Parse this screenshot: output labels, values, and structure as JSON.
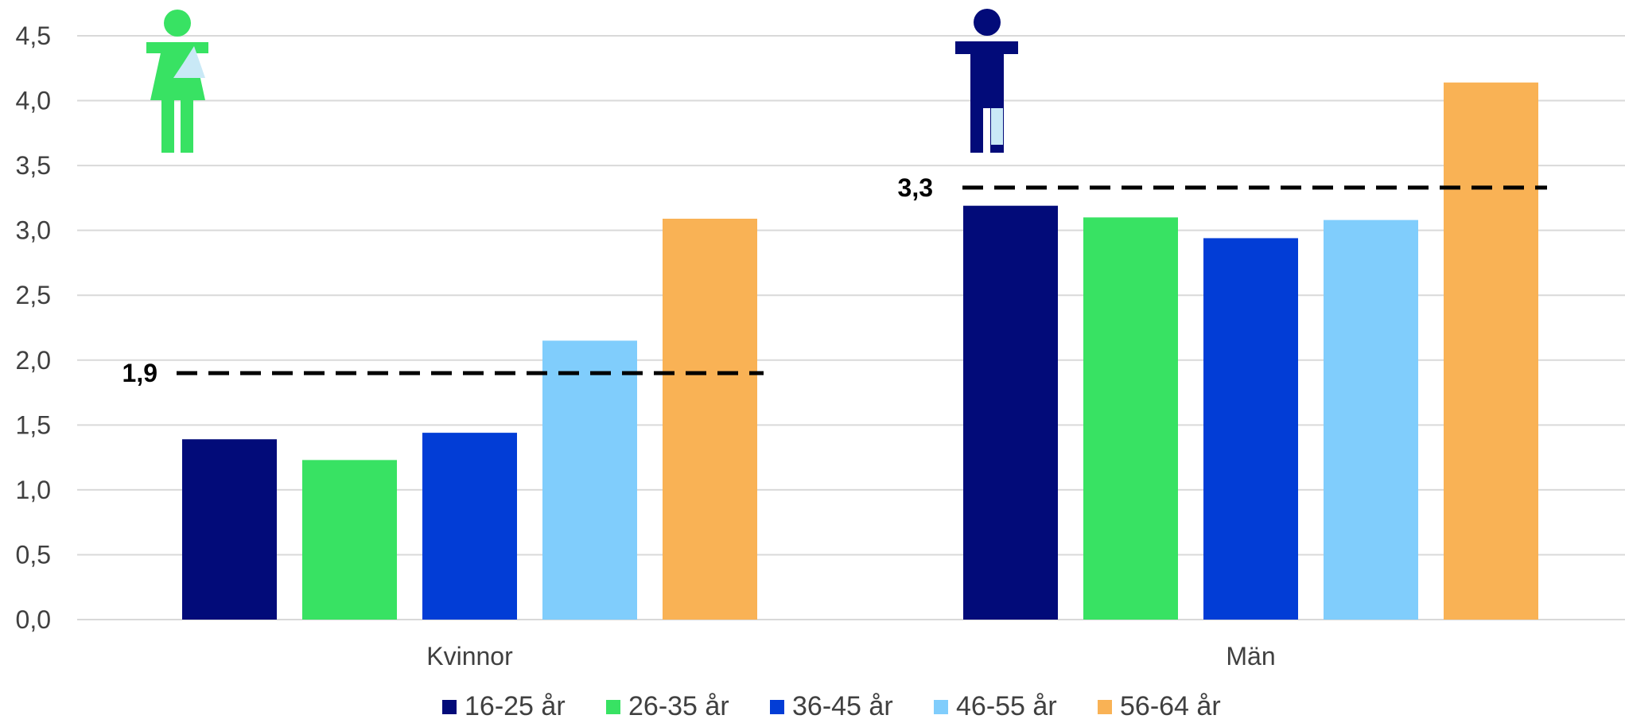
{
  "chart_data": {
    "type": "bar",
    "title": "",
    "xlabel": "",
    "ylabel": "",
    "ylim": [
      0,
      4.5
    ],
    "yticks": [
      "0,0",
      "0,5",
      "1,0",
      "1,5",
      "2,0",
      "2,5",
      "3,0",
      "3,5",
      "4,0",
      "4,5"
    ],
    "grid": true,
    "legend_position": "bottom",
    "categories": [
      "Kvinnor",
      "Män"
    ],
    "series": [
      {
        "name": "16-25 år",
        "color": "#020B79",
        "values": [
          1.39,
          3.19
        ]
      },
      {
        "name": "26-35 år",
        "color": "#38E263",
        "values": [
          1.23,
          3.1
        ]
      },
      {
        "name": "36-45 år",
        "color": "#023DD6",
        "values": [
          1.44,
          2.94
        ]
      },
      {
        "name": "46-55 år",
        "color": "#80CDFC",
        "values": [
          2.15,
          3.08
        ]
      },
      {
        "name": "56-64 år",
        "color": "#F9B255",
        "values": [
          3.09,
          4.14
        ]
      }
    ],
    "averages": [
      {
        "category": "Kvinnor",
        "value": 1.9,
        "label": "1,9"
      },
      {
        "category": "Män",
        "value": 3.33,
        "label": "3,3"
      }
    ],
    "icons": [
      {
        "category": "Kvinnor",
        "name": "woman-icon",
        "color": "#38E263",
        "accent": "#C9E9F6"
      },
      {
        "category": "Män",
        "name": "man-icon",
        "color": "#020B79",
        "accent": "#C9E9F6"
      }
    ]
  }
}
